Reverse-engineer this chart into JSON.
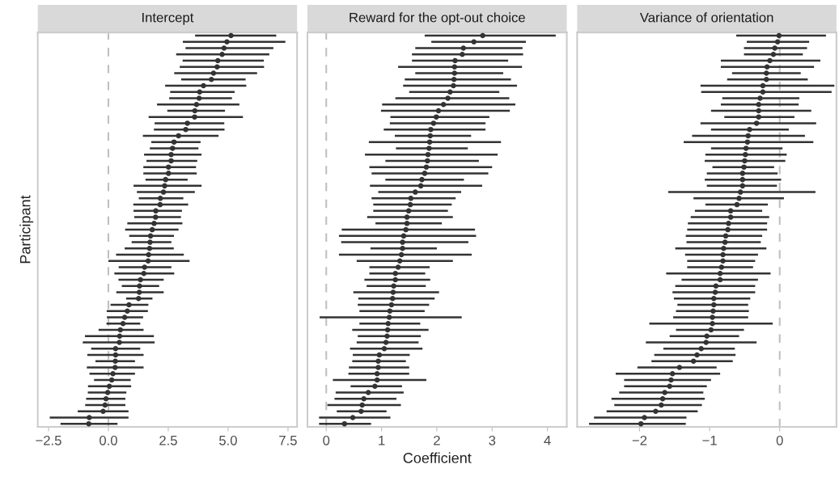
{
  "chart_data": [
    {
      "type": "scatter",
      "orientation": "horizontal",
      "title": "Intercept",
      "ylabel": "Participant",
      "color": "#333333",
      "marker": "circle",
      "grid": false,
      "tick_labels": "x",
      "categories": [
        null,
        null,
        null,
        null,
        null,
        null,
        null,
        null,
        null,
        null,
        null,
        null,
        null,
        null,
        null,
        null,
        null,
        null,
        null,
        null,
        null,
        null,
        null,
        null,
        null,
        null,
        null,
        null,
        null,
        null,
        null,
        null,
        null,
        null,
        null,
        null,
        null,
        null,
        null,
        null,
        null,
        null,
        null,
        null,
        null,
        null,
        null,
        null,
        null,
        null,
        null,
        null,
        null,
        null,
        null,
        null,
        null,
        null,
        null,
        null,
        null,
        null,
        null
      ],
      "values": [
        5.12,
        4.95,
        4.83,
        4.75,
        4.57,
        4.54,
        4.39,
        4.3,
        3.97,
        3.81,
        3.79,
        3.68,
        3.61,
        3.6,
        3.3,
        3.23,
        2.93,
        2.74,
        2.68,
        2.62,
        2.62,
        2.51,
        2.51,
        2.39,
        2.35,
        2.3,
        2.17,
        2.16,
        1.98,
        1.97,
        1.91,
        1.83,
        1.76,
        1.74,
        1.72,
        1.68,
        1.66,
        1.51,
        1.48,
        1.34,
        1.3,
        1.29,
        1.26,
        0.86,
        0.79,
        0.68,
        0.61,
        0.5,
        0.47,
        0.46,
        0.3,
        0.3,
        0.29,
        0.28,
        0.19,
        0.14,
        0.04,
        -0.03,
        -0.1,
        -0.14,
        -0.22,
        -0.8,
        -0.82
      ],
      "errors": [
        [
          3.62,
          7.01
        ],
        [
          3.11,
          7.39
        ],
        [
          3.22,
          6.89
        ],
        [
          2.83,
          6.72
        ],
        [
          3.1,
          6.49
        ],
        [
          2.98,
          6.5
        ],
        [
          2.75,
          6.21
        ],
        [
          3.04,
          5.73
        ],
        [
          2.37,
          5.76
        ],
        [
          2.58,
          5.27
        ],
        [
          2.54,
          5.16
        ],
        [
          2.03,
          5.47
        ],
        [
          2.46,
          4.87
        ],
        [
          1.68,
          5.62
        ],
        [
          1.93,
          4.84
        ],
        [
          1.9,
          4.85
        ],
        [
          1.44,
          4.6
        ],
        [
          1.79,
          3.85
        ],
        [
          1.73,
          3.76
        ],
        [
          1.49,
          3.89
        ],
        [
          1.59,
          3.71
        ],
        [
          1.46,
          3.66
        ],
        [
          1.46,
          3.69
        ],
        [
          1.55,
          3.31
        ],
        [
          1.05,
          3.89
        ],
        [
          1.19,
          3.61
        ],
        [
          1.27,
          3.13
        ],
        [
          1.04,
          3.33
        ],
        [
          1.05,
          3.07
        ],
        [
          1.08,
          3.03
        ],
        [
          0.79,
          3.09
        ],
        [
          0.7,
          2.93
        ],
        [
          0.87,
          2.74
        ],
        [
          0.97,
          2.63
        ],
        [
          0.68,
          2.73
        ],
        [
          0.32,
          3.15
        ],
        [
          0.0,
          3.39
        ],
        [
          0.43,
          2.63
        ],
        [
          0.25,
          2.75
        ],
        [
          0.42,
          2.31
        ],
        [
          0.56,
          2.12
        ],
        [
          0.33,
          2.31
        ],
        [
          0.74,
          1.84
        ],
        [
          0.09,
          1.67
        ],
        [
          -0.07,
          1.65
        ],
        [
          -0.06,
          1.45
        ],
        [
          -0.08,
          1.33
        ],
        [
          -0.41,
          1.47
        ],
        [
          -0.98,
          1.9
        ],
        [
          -1.07,
          1.93
        ],
        [
          -0.72,
          1.33
        ],
        [
          -0.88,
          1.47
        ],
        [
          -0.54,
          1.11
        ],
        [
          -0.9,
          1.47
        ],
        [
          -0.79,
          1.11
        ],
        [
          -0.6,
          0.93
        ],
        [
          -0.85,
          0.95
        ],
        [
          -0.86,
          0.75
        ],
        [
          -0.93,
          0.71
        ],
        [
          -0.97,
          0.71
        ],
        [
          -1.28,
          0.84
        ],
        [
          -2.45,
          0.84
        ],
        [
          -2.0,
          0.38
        ]
      ],
      "xlim": [
        -2.95,
        7.88
      ],
      "xticks": [
        {
          "value": -2.5,
          "label": "−2.5"
        },
        {
          "value": 0,
          "label": "0.0"
        },
        {
          "value": 2.5,
          "label": "2.5"
        },
        {
          "value": 5,
          "label": "5.0"
        },
        {
          "value": 7.5,
          "label": "7.5"
        }
      ],
      "ref_lines": [
        {
          "axis": "x",
          "value": 0,
          "color": "#bfbfbf",
          "line_style": "dashed"
        }
      ]
    },
    {
      "type": "scatter",
      "orientation": "horizontal",
      "title": "Reward for the opt-out choice",
      "xlabel": "Coefficient",
      "color": "#333333",
      "marker": "circle",
      "grid": false,
      "tick_labels": "x",
      "categories": [
        null,
        null,
        null,
        null,
        null,
        null,
        null,
        null,
        null,
        null,
        null,
        null,
        null,
        null,
        null,
        null,
        null,
        null,
        null,
        null,
        null,
        null,
        null,
        null,
        null,
        null,
        null,
        null,
        null,
        null,
        null,
        null,
        null,
        null,
        null,
        null,
        null,
        null,
        null,
        null,
        null,
        null,
        null,
        null,
        null,
        null,
        null,
        null,
        null,
        null,
        null,
        null,
        null,
        null,
        null,
        null,
        null,
        null,
        null,
        null,
        null,
        null,
        null
      ],
      "values": [
        2.83,
        2.67,
        2.48,
        2.46,
        2.33,
        2.32,
        2.32,
        2.31,
        2.3,
        2.24,
        2.2,
        2.12,
        2.03,
        1.99,
        1.94,
        1.89,
        1.88,
        1.87,
        1.86,
        1.84,
        1.83,
        1.81,
        1.78,
        1.73,
        1.71,
        1.61,
        1.53,
        1.52,
        1.49,
        1.46,
        1.46,
        1.44,
        1.4,
        1.38,
        1.38,
        1.36,
        1.33,
        1.3,
        1.25,
        1.25,
        1.22,
        1.21,
        1.2,
        1.18,
        1.15,
        1.14,
        1.12,
        1.11,
        1.1,
        1.08,
        1.05,
        0.96,
        0.94,
        0.94,
        0.92,
        0.92,
        0.88,
        0.76,
        0.68,
        0.65,
        0.63,
        0.48,
        0.33
      ],
      "errors": [
        [
          1.78,
          4.15
        ],
        [
          1.9,
          3.61
        ],
        [
          1.61,
          3.55
        ],
        [
          1.55,
          3.56
        ],
        [
          1.55,
          3.29
        ],
        [
          1.3,
          3.54
        ],
        [
          1.61,
          3.2
        ],
        [
          1.42,
          3.34
        ],
        [
          1.39,
          3.45
        ],
        [
          1.5,
          3.13
        ],
        [
          1.25,
          3.31
        ],
        [
          1.01,
          3.42
        ],
        [
          0.99,
          3.32
        ],
        [
          1.16,
          2.95
        ],
        [
          1.15,
          2.88
        ],
        [
          1.04,
          2.88
        ],
        [
          1.24,
          2.62
        ],
        [
          0.77,
          3.16
        ],
        [
          1.26,
          2.56
        ],
        [
          0.7,
          3.1
        ],
        [
          1.07,
          2.76
        ],
        [
          0.78,
          3.0
        ],
        [
          0.82,
          2.93
        ],
        [
          1.07,
          2.49
        ],
        [
          0.79,
          2.82
        ],
        [
          0.94,
          2.44
        ],
        [
          0.82,
          2.34
        ],
        [
          0.85,
          2.27
        ],
        [
          0.85,
          2.2
        ],
        [
          0.74,
          2.29
        ],
        [
          0.89,
          2.09
        ],
        [
          0.28,
          2.69
        ],
        [
          0.23,
          2.71
        ],
        [
          0.27,
          2.57
        ],
        [
          0.8,
          2.0
        ],
        [
          0.23,
          2.63
        ],
        [
          0.55,
          2.29
        ],
        [
          0.78,
          1.87
        ],
        [
          0.78,
          1.79
        ],
        [
          0.69,
          1.88
        ],
        [
          0.73,
          1.8
        ],
        [
          0.49,
          2.04
        ],
        [
          0.58,
          1.96
        ],
        [
          0.57,
          1.86
        ],
        [
          0.6,
          1.78
        ],
        [
          -0.12,
          2.45
        ],
        [
          0.6,
          1.7
        ],
        [
          0.47,
          1.85
        ],
        [
          0.57,
          1.71
        ],
        [
          0.55,
          1.67
        ],
        [
          0.43,
          1.74
        ],
        [
          0.48,
          1.51
        ],
        [
          0.47,
          1.44
        ],
        [
          0.41,
          1.5
        ],
        [
          0.4,
          1.5
        ],
        [
          0.12,
          1.81
        ],
        [
          0.44,
          1.37
        ],
        [
          0.17,
          1.4
        ],
        [
          0.15,
          1.27
        ],
        [
          0.02,
          1.35
        ],
        [
          0.19,
          1.09
        ],
        [
          -0.13,
          1.16
        ],
        [
          -0.13,
          0.81
        ]
      ],
      "xlim": [
        -0.34,
        4.35
      ],
      "xticks": [
        0,
        1,
        2,
        3,
        4
      ],
      "ref_lines": [
        {
          "axis": "x",
          "value": 0,
          "color": "#bfbfbf",
          "line_style": "dashed"
        }
      ]
    },
    {
      "type": "scatter",
      "orientation": "horizontal",
      "title": "Variance of orientation",
      "color": "#333333",
      "marker": "circle",
      "grid": false,
      "tick_labels": "x",
      "categories": [
        null,
        null,
        null,
        null,
        null,
        null,
        null,
        null,
        null,
        null,
        null,
        null,
        null,
        null,
        null,
        null,
        null,
        null,
        null,
        null,
        null,
        null,
        null,
        null,
        null,
        null,
        null,
        null,
        null,
        null,
        null,
        null,
        null,
        null,
        null,
        null,
        null,
        null,
        null,
        null,
        null,
        null,
        null,
        null,
        null,
        null,
        null,
        null,
        null,
        null,
        null,
        null,
        null,
        null,
        null,
        null,
        null,
        null,
        null,
        null,
        null,
        null,
        null
      ],
      "values": [
        -0.01,
        -0.03,
        -0.07,
        -0.09,
        -0.14,
        -0.18,
        -0.19,
        -0.19,
        -0.24,
        -0.24,
        -0.28,
        -0.3,
        -0.3,
        -0.3,
        -0.33,
        -0.43,
        -0.45,
        -0.46,
        -0.48,
        -0.49,
        -0.5,
        -0.51,
        -0.53,
        -0.53,
        -0.53,
        -0.56,
        -0.58,
        -0.61,
        -0.7,
        -0.7,
        -0.73,
        -0.74,
        -0.77,
        -0.78,
        -0.8,
        -0.81,
        -0.81,
        -0.83,
        -0.85,
        -0.85,
        -0.91,
        -0.92,
        -0.94,
        -0.94,
        -0.95,
        -0.96,
        -0.96,
        -0.98,
        -1.04,
        -1.05,
        -1.12,
        -1.18,
        -1.23,
        -1.43,
        -1.53,
        -1.55,
        -1.57,
        -1.64,
        -1.67,
        -1.69,
        -1.77,
        -1.93,
        -1.98
      ],
      "errors": [
        [
          -0.62,
          0.66
        ],
        [
          -0.47,
          0.42
        ],
        [
          -0.51,
          0.39
        ],
        [
          -0.51,
          0.33
        ],
        [
          -0.84,
          0.58
        ],
        [
          -0.84,
          0.49
        ],
        [
          -0.68,
          0.3
        ],
        [
          -0.75,
          0.4
        ],
        [
          -1.13,
          0.78
        ],
        [
          -1.12,
          0.74
        ],
        [
          -0.82,
          0.28
        ],
        [
          -0.84,
          0.27
        ],
        [
          -0.98,
          0.45
        ],
        [
          -0.79,
          0.21
        ],
        [
          -1.13,
          0.52
        ],
        [
          -0.98,
          0.13
        ],
        [
          -1.25,
          0.36
        ],
        [
          -1.37,
          0.48
        ],
        [
          -0.98,
          0.04
        ],
        [
          -1.06,
          0.1
        ],
        [
          -1.07,
          0.08
        ],
        [
          -0.96,
          -0.08
        ],
        [
          -1.04,
          -0.03
        ],
        [
          -1.07,
          0.02
        ],
        [
          -1.04,
          -0.04
        ],
        [
          -1.59,
          0.51
        ],
        [
          -1.23,
          0.06
        ],
        [
          -1.06,
          -0.17
        ],
        [
          -1.21,
          -0.25
        ],
        [
          -1.27,
          -0.15
        ],
        [
          -1.31,
          -0.18
        ],
        [
          -1.32,
          -0.18
        ],
        [
          -1.34,
          -0.25
        ],
        [
          -1.33,
          -0.27
        ],
        [
          -1.49,
          -0.19
        ],
        [
          -1.35,
          -0.31
        ],
        [
          -1.32,
          -0.35
        ],
        [
          -1.32,
          -0.38
        ],
        [
          -1.62,
          -0.13
        ],
        [
          -1.4,
          -0.31
        ],
        [
          -1.49,
          -0.35
        ],
        [
          -1.53,
          -0.35
        ],
        [
          -1.51,
          -0.42
        ],
        [
          -1.46,
          -0.45
        ],
        [
          -1.48,
          -0.44
        ],
        [
          -1.52,
          -0.45
        ],
        [
          -1.86,
          -0.1
        ],
        [
          -1.48,
          -0.51
        ],
        [
          -1.57,
          -0.58
        ],
        [
          -1.91,
          -0.33
        ],
        [
          -1.66,
          -0.64
        ],
        [
          -1.79,
          -0.63
        ],
        [
          -1.83,
          -0.67
        ],
        [
          -2.03,
          -0.9
        ],
        [
          -2.34,
          -0.85
        ],
        [
          -2.22,
          -0.98
        ],
        [
          -2.22,
          -1.04
        ],
        [
          -2.29,
          -1.09
        ],
        [
          -2.4,
          -1.07
        ],
        [
          -2.36,
          -1.11
        ],
        [
          -2.47,
          -1.17
        ],
        [
          -2.65,
          -1.33
        ],
        [
          -2.72,
          -1.34
        ]
      ],
      "xlim": [
        -2.89,
        0.81
      ],
      "xticks": [
        {
          "value": -2,
          "label": "−2"
        },
        {
          "value": -1,
          "label": "−1"
        },
        {
          "value": 0,
          "label": "0"
        }
      ],
      "ref_lines": [
        {
          "axis": "x",
          "value": 0,
          "color": "#bfbfbf",
          "line_style": "dashed"
        }
      ]
    }
  ]
}
